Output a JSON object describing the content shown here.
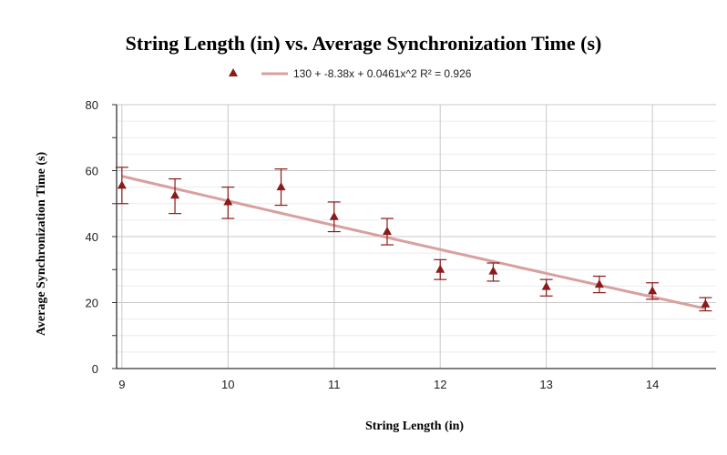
{
  "chart_data": {
    "type": "scatter",
    "title": "String Length (in) vs. Average Synchronization Time (s)",
    "xlabel": "String Length (in)",
    "ylabel": "Average Synchronization Time (s)",
    "xlim": [
      8.95,
      14.6
    ],
    "ylim": [
      0,
      80
    ],
    "x_ticks": [
      "9",
      "10",
      "11",
      "12",
      "13",
      "14"
    ],
    "y_ticks": [
      "0",
      "20",
      "40",
      "60",
      "80"
    ],
    "grid": true,
    "legend_position": "top",
    "series": [
      {
        "marker": "triangle",
        "color": "#8b1a1a",
        "points": [
          {
            "x": 9.0,
            "y": 55.5,
            "err_low": 50.0,
            "err_high": 61.0
          },
          {
            "x": 9.5,
            "y": 52.5,
            "err_low": 47.0,
            "err_high": 57.5
          },
          {
            "x": 10.0,
            "y": 50.5,
            "err_low": 45.5,
            "err_high": 55.0
          },
          {
            "x": 10.5,
            "y": 55.0,
            "err_low": 49.5,
            "err_high": 60.5
          },
          {
            "x": 11.0,
            "y": 46.0,
            "err_low": 41.5,
            "err_high": 50.5
          },
          {
            "x": 11.5,
            "y": 41.5,
            "err_low": 37.5,
            "err_high": 45.5
          },
          {
            "x": 12.0,
            "y": 30.0,
            "err_low": 27.0,
            "err_high": 33.0
          },
          {
            "x": 12.5,
            "y": 29.5,
            "err_low": 26.5,
            "err_high": 32.0
          },
          {
            "x": 13.0,
            "y": 24.8,
            "err_low": 22.0,
            "err_high": 27.0
          },
          {
            "x": 13.5,
            "y": 25.5,
            "err_low": 23.0,
            "err_high": 28.0
          },
          {
            "x": 14.0,
            "y": 23.5,
            "err_low": 21.0,
            "err_high": 26.0
          },
          {
            "x": 14.5,
            "y": 19.5,
            "err_low": 17.5,
            "err_high": 21.5
          }
        ]
      }
    ],
    "trendline": {
      "label": "130 + -8.38x + 0.0461x^2 R² = 0.926",
      "coefficients": [
        130,
        -8.38,
        0.0461
      ],
      "color": "#d8a0a0"
    }
  }
}
